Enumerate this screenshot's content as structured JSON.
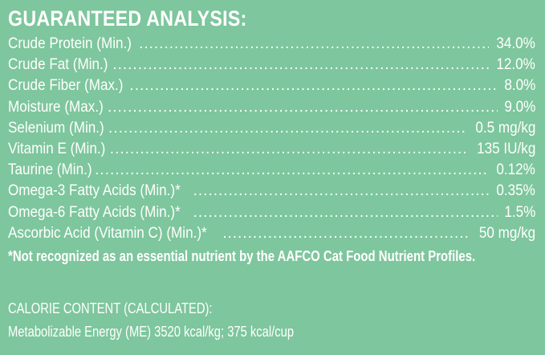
{
  "analysis": {
    "title": "GUARANTEED ANALYSIS:",
    "rows": [
      {
        "label": "Crude Protein (Min.)",
        "value": "34.0%"
      },
      {
        "label": "Crude Fat (Min.)",
        "value": "12.0%"
      },
      {
        "label": "Crude Fiber (Max.)",
        "value": "8.0%"
      },
      {
        "label": "Moisture (Max.)",
        "value": "9.0%"
      },
      {
        "label": "Selenium (Min.)",
        "value": "0.5 mg/kg"
      },
      {
        "label": "Vitamin E (Min.)",
        "value": "135 IU/kg"
      },
      {
        "label": "Taurine (Min.)",
        "value": "0.12%"
      },
      {
        "label": "Omega-3 Fatty Acids (Min.)*",
        "value": "0.35%"
      },
      {
        "label": "Omega-6 Fatty Acids (Min.)*",
        "value": "1.5%"
      },
      {
        "label": "Ascorbic Acid (Vitamin C) (Min.)*",
        "value": "50 mg/kg"
      }
    ],
    "footnote": "*Not recognized as an essential nutrient by the AAFCO Cat Food Nutrient Profiles."
  },
  "calorie": {
    "heading": "CALORIE CONTENT (CALCULATED):",
    "line": "Metabolizable Energy (ME) 3520 kcal/kg;  375 kcal/cup"
  },
  "colors": {
    "background": "#7ec69d",
    "text": "#ffffff"
  }
}
